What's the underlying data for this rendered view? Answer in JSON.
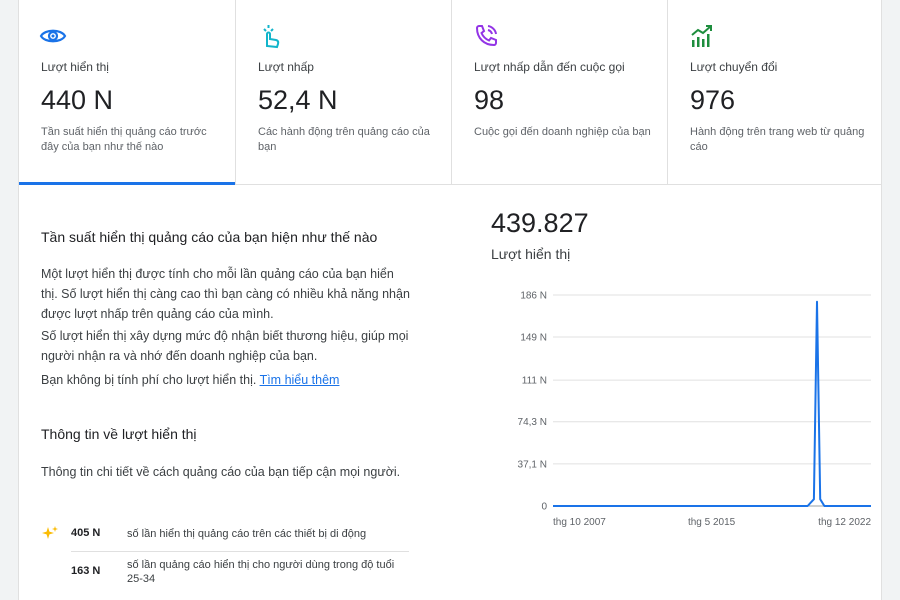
{
  "cards": [
    {
      "icon": "eye-icon",
      "label": "Lượt hiển thị",
      "value": "440 N",
      "desc": "Tần suất hiển thị quảng cáo trước đây của bạn như thế nào",
      "active": true
    },
    {
      "icon": "tap-icon",
      "label": "Lượt nhấp",
      "value": "52,4 N",
      "desc": "Các hành động trên quảng cáo của bạn",
      "active": false
    },
    {
      "icon": "phone-call-icon",
      "label": "Lượt nhấp dẫn đến cuộc gọi",
      "value": "98",
      "desc": "Cuộc gọi đến doanh nghiệp của bạn",
      "active": false
    },
    {
      "icon": "trending-up-chart-icon",
      "label": "Lượt chuyển đổi",
      "value": "976",
      "desc": "Hành động trên trang web từ quảng cáo",
      "active": false
    }
  ],
  "colors": {
    "accent": "#1a73e8",
    "clicks_icon": "#12b5cb",
    "calls_icon": "#9334e6",
    "conversions_icon": "#1e8e3e",
    "sparkle": "#fbbc04"
  },
  "section1": {
    "title": "Tần suất hiển thị quảng cáo của bạn hiện như thế nào",
    "p1": "Một lượt hiển thị được tính cho mỗi lần quảng cáo của bạn hiển thị. Số lượt hiển thị càng cao thì bạn càng có nhiều khả năng nhận được lượt nhấp trên quảng cáo của mình.",
    "p2": "Số lượt hiển thị xây dựng mức độ nhận biết thương hiệu, giúp mọi người nhận ra và nhớ đến doanh nghiệp của bạn.",
    "p3": "Bạn không bị tính phí cho lượt hiển thị.",
    "link": "Tìm hiểu thêm"
  },
  "section2": {
    "title": "Thông tin về lượt hiển thị",
    "p1": "Thông tin chi tiết về cách quảng cáo của bạn tiếp cận mọi người.",
    "stats": [
      {
        "value": "405 N",
        "text": "số lần hiển thị quảng cáo trên các thiết bị di động",
        "icon": "sparkle-icon"
      },
      {
        "value": "163 N",
        "text": "số lần quảng cáo hiển thị cho người dùng trong độ tuổi 25-34",
        "icon": ""
      }
    ]
  },
  "summary": {
    "total": "439.827",
    "label": "Lượt hiển thị"
  },
  "chart_data": {
    "type": "line",
    "ylim": [
      0,
      186
    ],
    "yticks": [
      0,
      37.1,
      74.3,
      111,
      149,
      186
    ],
    "ytick_labels": [
      "0",
      "37,1 N",
      "74,3 N",
      "111 N",
      "149 N",
      "186 N"
    ],
    "xlim": [
      2007.78,
      2022.92
    ],
    "xticks": [
      2007.78,
      2015.33,
      2022.92
    ],
    "xtick_labels": [
      "thg 10 2007",
      "thg 5 2015",
      "thg 12 2022"
    ],
    "grid": true,
    "color": "#1a73e8",
    "series": [
      {
        "x": [
          2007.78,
          2019.9,
          2020.2,
          2020.35,
          2020.5,
          2020.7,
          2022.92
        ],
        "y": [
          0,
          0,
          6,
          180,
          6,
          0,
          0
        ]
      }
    ]
  }
}
